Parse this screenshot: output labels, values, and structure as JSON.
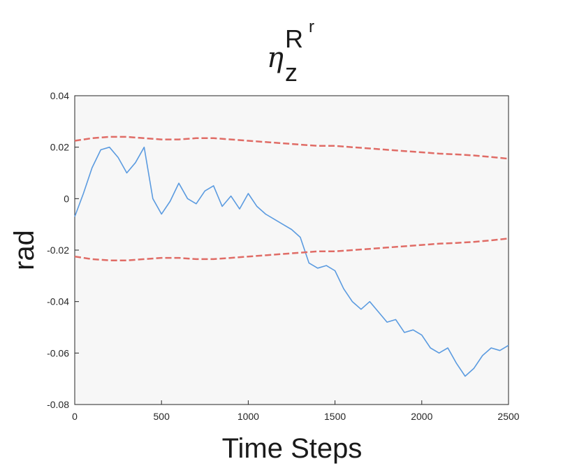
{
  "chart_data": {
    "type": "line",
    "title": {
      "symbol": "η",
      "subscript": "z",
      "superscript": "R",
      "superscript2": "r"
    },
    "xlabel": "Time Steps",
    "ylabel": "rad",
    "xlim": [
      0,
      2500
    ],
    "ylim": [
      -0.08,
      0.04
    ],
    "xticks": [
      0,
      500,
      1000,
      1500,
      2000,
      2500
    ],
    "xtick_labels": [
      "0",
      "500",
      "1000",
      "1500",
      "2000",
      "2500"
    ],
    "yticks": [
      0.04,
      0.02,
      0,
      -0.02,
      -0.04,
      -0.06,
      -0.08
    ],
    "ytick_labels": [
      "0.04",
      "0.02",
      "0",
      "-0.02",
      "-0.04",
      "-0.06",
      "-0.08"
    ],
    "grid": false,
    "background": "#f7f7f7",
    "series": [
      {
        "role": "estimation error",
        "color": "#5b9be0",
        "style": "solid",
        "x": [
          0,
          50,
          100,
          150,
          200,
          250,
          300,
          350,
          400,
          450,
          500,
          550,
          600,
          650,
          700,
          750,
          800,
          850,
          900,
          950,
          1000,
          1050,
          1100,
          1150,
          1200,
          1250,
          1300,
          1350,
          1400,
          1450,
          1500,
          1550,
          1600,
          1650,
          1700,
          1750,
          1800,
          1850,
          1900,
          1950,
          2000,
          2050,
          2100,
          2150,
          2200,
          2250,
          2300,
          2350,
          2400,
          2450,
          2500
        ],
        "y": [
          -0.007,
          0.002,
          0.012,
          0.019,
          0.02,
          0.016,
          0.01,
          0.014,
          0.02,
          0.0,
          -0.006,
          -0.001,
          0.006,
          0.0,
          -0.002,
          0.003,
          0.005,
          -0.003,
          0.001,
          -0.004,
          0.002,
          -0.003,
          -0.006,
          -0.008,
          -0.01,
          -0.012,
          -0.015,
          -0.025,
          -0.027,
          -0.026,
          -0.028,
          -0.035,
          -0.04,
          -0.043,
          -0.04,
          -0.044,
          -0.048,
          -0.047,
          -0.052,
          -0.051,
          -0.053,
          -0.058,
          -0.06,
          -0.058,
          -0.064,
          -0.069,
          -0.066,
          -0.061,
          -0.058,
          -0.059,
          -0.057
        ]
      },
      {
        "role": "upper bound",
        "color": "#e06c66",
        "style": "dashed",
        "x": [
          0,
          100,
          200,
          300,
          400,
          500,
          600,
          700,
          800,
          900,
          1000,
          1100,
          1200,
          1300,
          1400,
          1500,
          1600,
          1700,
          1800,
          1900,
          2000,
          2100,
          2200,
          2300,
          2400,
          2500
        ],
        "y": [
          0.0225,
          0.0235,
          0.024,
          0.024,
          0.0235,
          0.023,
          0.023,
          0.0235,
          0.0235,
          0.023,
          0.0225,
          0.022,
          0.0215,
          0.021,
          0.0205,
          0.0205,
          0.02,
          0.0195,
          0.019,
          0.0185,
          0.018,
          0.0175,
          0.0172,
          0.0168,
          0.0162,
          0.0155
        ]
      },
      {
        "role": "lower bound",
        "color": "#e06c66",
        "style": "dashed",
        "x": [
          0,
          100,
          200,
          300,
          400,
          500,
          600,
          700,
          800,
          900,
          1000,
          1100,
          1200,
          1300,
          1400,
          1500,
          1600,
          1700,
          1800,
          1900,
          2000,
          2100,
          2200,
          2300,
          2400,
          2500
        ],
        "y": [
          -0.0225,
          -0.0235,
          -0.024,
          -0.024,
          -0.0235,
          -0.023,
          -0.023,
          -0.0235,
          -0.0235,
          -0.023,
          -0.0225,
          -0.022,
          -0.0215,
          -0.021,
          -0.0205,
          -0.0205,
          -0.02,
          -0.0195,
          -0.019,
          -0.0185,
          -0.018,
          -0.0175,
          -0.0172,
          -0.0168,
          -0.0162,
          -0.0155
        ]
      }
    ]
  }
}
